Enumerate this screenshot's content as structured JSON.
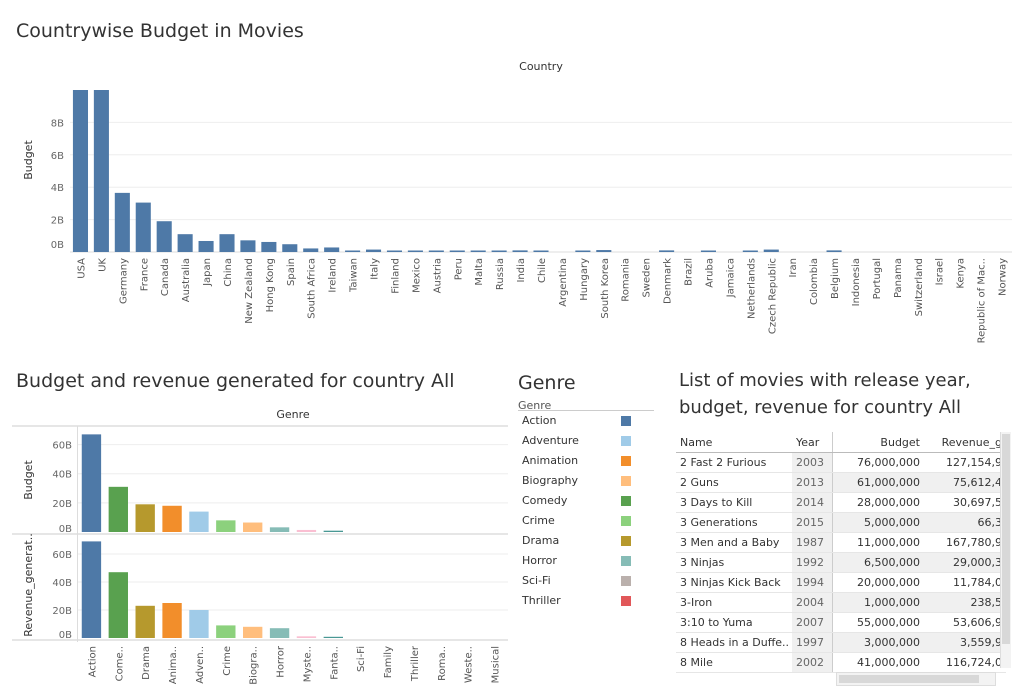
{
  "titles": {
    "top": "Countrywise Budget in Movies",
    "bottom_left": "Budget and revenue generated for country All",
    "legend": "Genre",
    "list": [
      "List of movies with release year,",
      "budget, revenue for country All"
    ]
  },
  "legend": {
    "header": "Genre",
    "items": [
      {
        "label": "Action",
        "color": "#4e79a7"
      },
      {
        "label": "Adventure",
        "color": "#a0cbe8"
      },
      {
        "label": "Animation",
        "color": "#f28e2b"
      },
      {
        "label": "Biography",
        "color": "#ffbe7d"
      },
      {
        "label": "Comedy",
        "color": "#59a14f"
      },
      {
        "label": "Crime",
        "color": "#8cd17d"
      },
      {
        "label": "Drama",
        "color": "#b6992d"
      },
      {
        "label": "Horror",
        "color": "#86bcb6"
      },
      {
        "label": "Sci-Fi",
        "color": "#bab0ac"
      },
      {
        "label": "Thriller",
        "color": "#e15759"
      }
    ]
  },
  "table": {
    "headers": [
      "Name",
      "Year",
      "Budget",
      "Revenue_g"
    ],
    "rows": [
      [
        "2 Fast 2 Furious",
        "2003",
        "76,000,000",
        "127,154,9"
      ],
      [
        "2 Guns",
        "2013",
        "61,000,000",
        "75,612,4"
      ],
      [
        "3 Days to Kill",
        "2014",
        "28,000,000",
        "30,697,5"
      ],
      [
        "3 Generations",
        "2015",
        "5,000,000",
        "66,3"
      ],
      [
        "3 Men and a Baby",
        "1987",
        "11,000,000",
        "167,780,9"
      ],
      [
        "3 Ninjas",
        "1992",
        "6,500,000",
        "29,000,3"
      ],
      [
        "3 Ninjas Kick Back",
        "1994",
        "20,000,000",
        "11,784,0"
      ],
      [
        "3-Iron",
        "2004",
        "1,000,000",
        "238,5"
      ],
      [
        "3:10 to Yuma",
        "2007",
        "55,000,000",
        "53,606,9"
      ],
      [
        "8 Heads in a Duffe..",
        "1997",
        "3,000,000",
        "3,559,9"
      ],
      [
        "8 Mile",
        "2002",
        "41,000,000",
        "116,724,0"
      ]
    ]
  },
  "chart_data": [
    {
      "type": "bar",
      "title": "Countrywise Budget in Movies",
      "column_header": "Country",
      "ylabel": "Budget",
      "yticks": [
        "0B",
        "2B",
        "4B",
        "6B",
        "8B"
      ],
      "ylim": [
        0,
        10
      ],
      "color": "#4e79a7",
      "categories": [
        "USA",
        "UK",
        "Germany",
        "France",
        "Canada",
        "Australia",
        "Japan",
        "China",
        "New Zealand",
        "Hong Kong",
        "Spain",
        "South Africa",
        "Ireland",
        "Taiwan",
        "Italy",
        "Finland",
        "Mexico",
        "Austria",
        "Peru",
        "Malta",
        "Russia",
        "India",
        "Chile",
        "Argentina",
        "Hungary",
        "South Korea",
        "Romania",
        "Sweden",
        "Denmark",
        "Brazil",
        "Aruba",
        "Jamaica",
        "Netherlands",
        "Czech Republic",
        "Iran",
        "Colombia",
        "Belgium",
        "Indonesia",
        "Portugal",
        "Panama",
        "Switzerland",
        "Israel",
        "Kenya",
        "Republic of Mac..",
        "Norway"
      ],
      "values": [
        10.0,
        10.0,
        3.65,
        3.05,
        1.9,
        1.1,
        0.68,
        1.1,
        0.72,
        0.62,
        0.48,
        0.22,
        0.28,
        0.05,
        0.15,
        0.05,
        0.05,
        0.05,
        0.05,
        0.05,
        0.05,
        0.1,
        0.05,
        0.0,
        0.05,
        0.12,
        0.0,
        0.0,
        0.1,
        0.0,
        0.05,
        0.0,
        0.05,
        0.15,
        0.0,
        0.0,
        0.1,
        0.0,
        0.0,
        0.0,
        0.0,
        0.0,
        0.0,
        0.0,
        0.0
      ]
    },
    {
      "type": "bar",
      "title": "Budget and revenue generated for country All",
      "column_header": "Genre",
      "categories": [
        "Action",
        "Come..",
        "Drama",
        "Anima..",
        "Adven..",
        "Crime",
        "Biogra..",
        "Horror",
        "Myste..",
        "Fanta..",
        "Sci-Fi",
        "Family",
        "Thriller",
        "Roma..",
        "Weste..",
        "Musical"
      ],
      "colors": [
        "#4e79a7",
        "#59a14f",
        "#b6992d",
        "#f28e2b",
        "#a0cbe8",
        "#8cd17d",
        "#ffbe7d",
        "#86bcb6",
        "#fabfd2",
        "#499894",
        "#bab0ac",
        "#9d7660",
        "#e15759",
        "#ff9d9a",
        "#79706e",
        "#d37295"
      ],
      "series": [
        {
          "name": "Budget",
          "label": "Budget",
          "yticks": [
            "0B",
            "20B",
            "40B",
            "60B"
          ],
          "ylim": [
            0,
            70
          ],
          "values": [
            67,
            31,
            19,
            18,
            14,
            8,
            6.5,
            3.2,
            1.4,
            0.9,
            0,
            0,
            0,
            0,
            0,
            0
          ]
        },
        {
          "name": "Revenue_generated",
          "label": "Revenue_generat..",
          "yticks": [
            "0B",
            "20B",
            "40B",
            "60B"
          ],
          "ylim": [
            0,
            70
          ],
          "values": [
            69,
            47,
            23,
            25,
            20,
            9,
            8,
            7,
            1.2,
            0.8,
            0,
            0,
            0,
            0,
            0,
            0
          ]
        }
      ]
    }
  ]
}
